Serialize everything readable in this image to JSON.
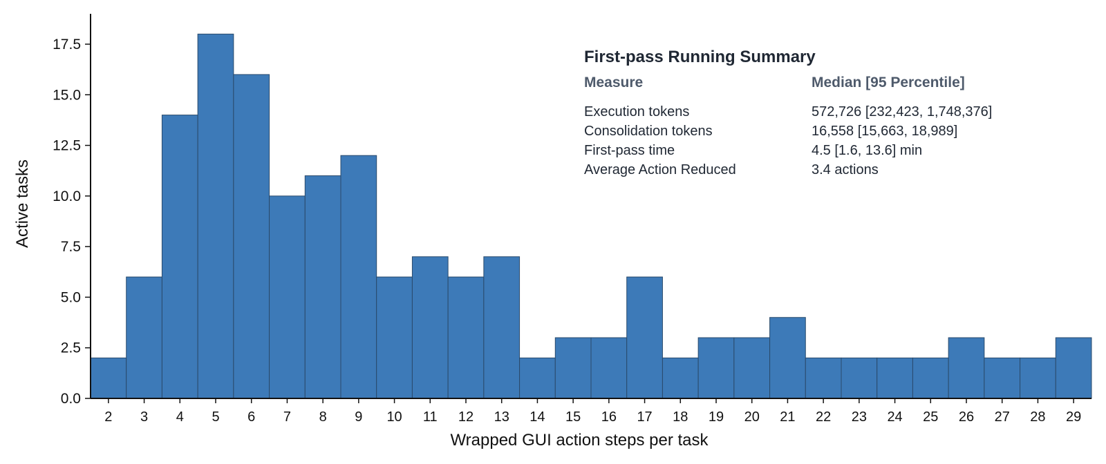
{
  "chart_data": {
    "type": "bar",
    "title": "",
    "xlabel": "Wrapped GUI action steps per task",
    "ylabel": "Active tasks",
    "categories": [
      "2",
      "3",
      "4",
      "5",
      "6",
      "7",
      "8",
      "9",
      "10",
      "11",
      "12",
      "13",
      "14",
      "15",
      "16",
      "17",
      "18",
      "19",
      "20",
      "21",
      "22",
      "23",
      "24",
      "25",
      "26",
      "27",
      "28",
      "29"
    ],
    "values": [
      2,
      6,
      14,
      18,
      16,
      10,
      11,
      12,
      6,
      7,
      6,
      7,
      2,
      3,
      3,
      6,
      2,
      3,
      3,
      4,
      2,
      2,
      2,
      2,
      3,
      2,
      2,
      3
    ],
    "ylim": [
      0,
      19
    ],
    "yticks": [
      "0.0",
      "2.5",
      "5.0",
      "7.5",
      "10.0",
      "12.5",
      "15.0",
      "17.5"
    ],
    "grid": false,
    "bar_color": "#3d7ab8",
    "bar_edge_color": "#2a4a6b"
  },
  "summary": {
    "title": "First-pass Running Summary",
    "col_measure": "Measure",
    "col_value": "Median [95 Percentile]",
    "rows": [
      {
        "measure": "Execution tokens",
        "value": "572,726 [232,423, 1,748,376]"
      },
      {
        "measure": "Consolidation tokens",
        "value": "16,558 [15,663, 18,989]"
      },
      {
        "measure": "First-pass time",
        "value": "4.5 [1.6, 13.6] min"
      },
      {
        "measure": "Average Action Reduced",
        "value": "3.4 actions"
      }
    ]
  }
}
